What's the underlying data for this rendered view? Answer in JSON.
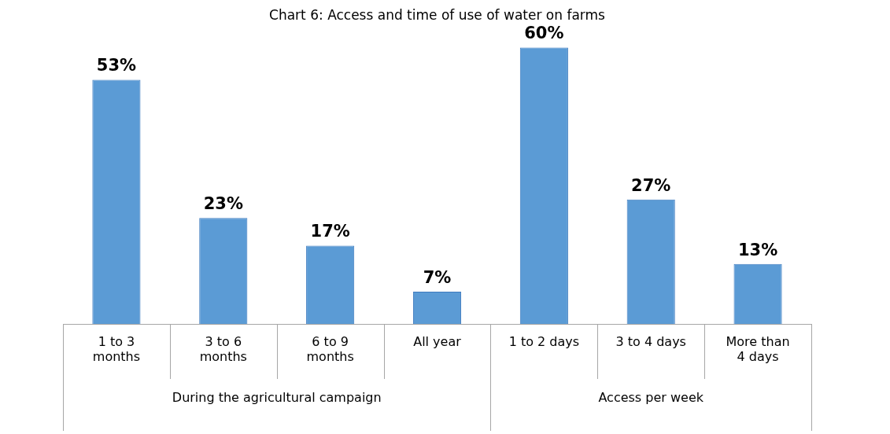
{
  "chart_data": {
    "type": "bar",
    "title": "Chart 6: Access and time of use of water on farms",
    "categories": [
      "1 to 3 months",
      "3 to 6 months",
      "6 to 9 months",
      "All year",
      "1 to 2 days",
      "3 to 4 days",
      "More than 4 days"
    ],
    "values": [
      53,
      23,
      17,
      7,
      60,
      27,
      13
    ],
    "color": "#5b9bd5",
    "data_labels": true,
    "value_labels": [
      "53%",
      "23%",
      "17%",
      "7%",
      "60%",
      "27%",
      "13%"
    ],
    "annotations": [
      "During the agricultural campaign",
      "Access per week"
    ],
    "grid": false,
    "legend": false
  }
}
